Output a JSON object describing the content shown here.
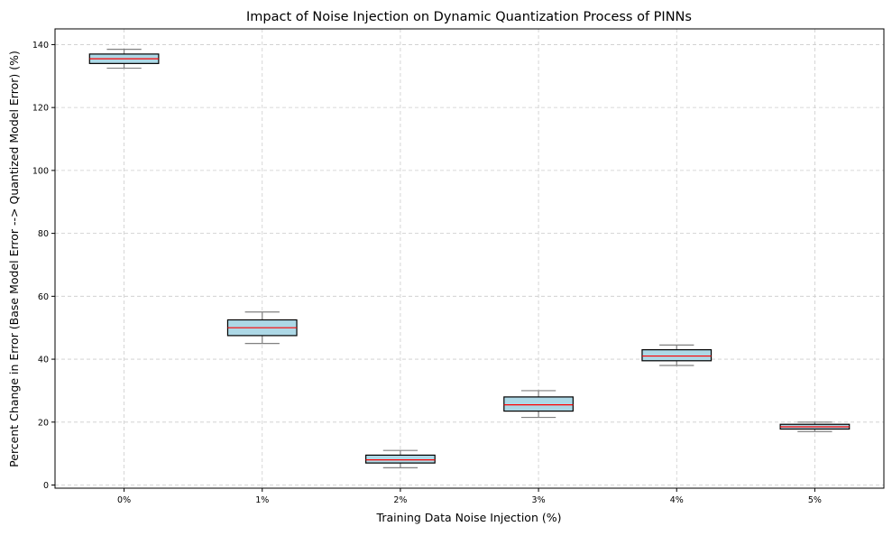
{
  "chart_data": {
    "type": "boxplot",
    "title": "Impact of Noise Injection on Dynamic Quantization Process of PINNs",
    "xlabel": "Training Data Noise Injection (%)",
    "ylabel": "Percent Change in Error (Base Model Error --> Quantized Model Error) (%)",
    "categories": [
      "0%",
      "1%",
      "2%",
      "3%",
      "4%",
      "5%"
    ],
    "boxes": [
      {
        "whislo": 132.5,
        "q1": 134.0,
        "med": 135.5,
        "q3": 137.0,
        "whishi": 138.5
      },
      {
        "whislo": 45.0,
        "q1": 47.5,
        "med": 50.0,
        "q3": 52.5,
        "whishi": 55.0
      },
      {
        "whislo": 5.5,
        "q1": 7.0,
        "med": 8.0,
        "q3": 9.5,
        "whishi": 11.0
      },
      {
        "whislo": 21.5,
        "q1": 23.5,
        "med": 25.5,
        "q3": 28.0,
        "whishi": 30.0
      },
      {
        "whislo": 38.0,
        "q1": 39.5,
        "med": 41.0,
        "q3": 43.0,
        "whishi": 44.5
      },
      {
        "whislo": 17.0,
        "q1": 17.8,
        "med": 18.5,
        "q3": 19.3,
        "whishi": 20.0
      }
    ],
    "ylim": [
      -1,
      145
    ],
    "yticks": [
      0,
      20,
      40,
      60,
      80,
      100,
      120,
      140
    ],
    "grid": true,
    "colors": {
      "box_fill": "#add8e6",
      "box_edge": "#000000",
      "median": "#ff0000",
      "whisker": "#808080",
      "grid": "#cccccc"
    }
  }
}
